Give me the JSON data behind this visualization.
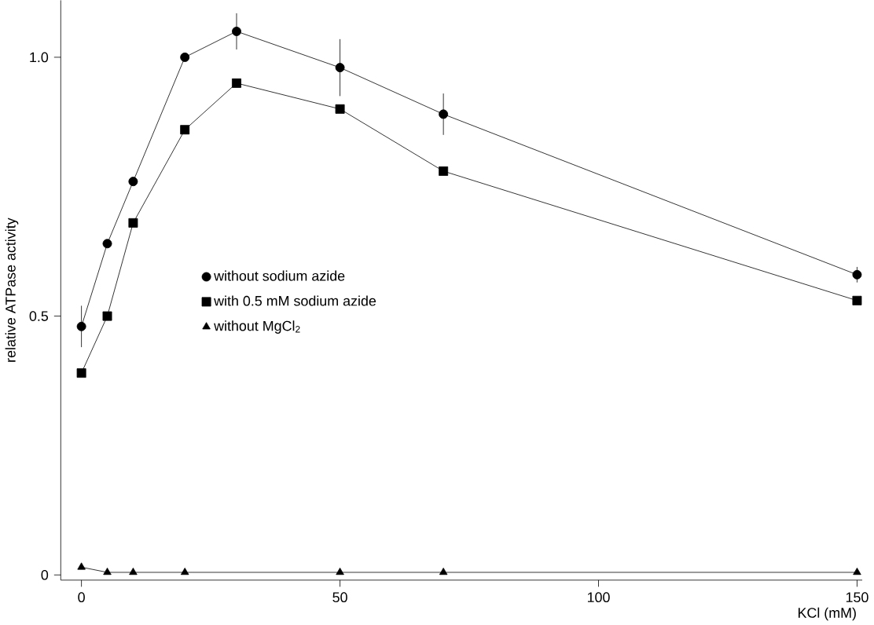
{
  "chart_data": {
    "type": "line",
    "xlabel": "KCl (mM)",
    "ylabel": "relative ATPase activity",
    "x": [
      0,
      5,
      10,
      20,
      30,
      50,
      70,
      150
    ],
    "series": [
      {
        "name": "without sodium azide",
        "color": "#000000",
        "marker": "circle",
        "values": [
          0.48,
          0.64,
          0.76,
          1.0,
          1.05,
          0.98,
          0.89,
          0.58
        ],
        "errors": [
          0.04,
          null,
          null,
          null,
          0.035,
          0.055,
          0.04,
          0.015
        ]
      },
      {
        "name": "with 0.5 mM sodium azide",
        "color": "#000000",
        "marker": "square",
        "values": [
          0.39,
          0.5,
          0.68,
          0.86,
          0.95,
          0.9,
          0.78,
          0.53
        ]
      },
      {
        "name": "without MgCl$_{2}$",
        "color": "#000000",
        "marker": "triangle",
        "x": [
          0,
          5,
          10,
          20,
          50,
          70,
          150
        ],
        "values": [
          0.015,
          0.005,
          0.005,
          0.005,
          0.005,
          0.005,
          0.005
        ]
      }
    ],
    "xlim": [
      -4,
      151
    ],
    "ylim": [
      -0.01,
      1.11
    ],
    "xticks": [
      0,
      50,
      100,
      150
    ],
    "yticks": [
      0,
      0.5,
      {
        "value": 1,
        "label": "1.0"
      }
    ],
    "grid": false,
    "legend": "center left",
    "line_style": "solid"
  }
}
